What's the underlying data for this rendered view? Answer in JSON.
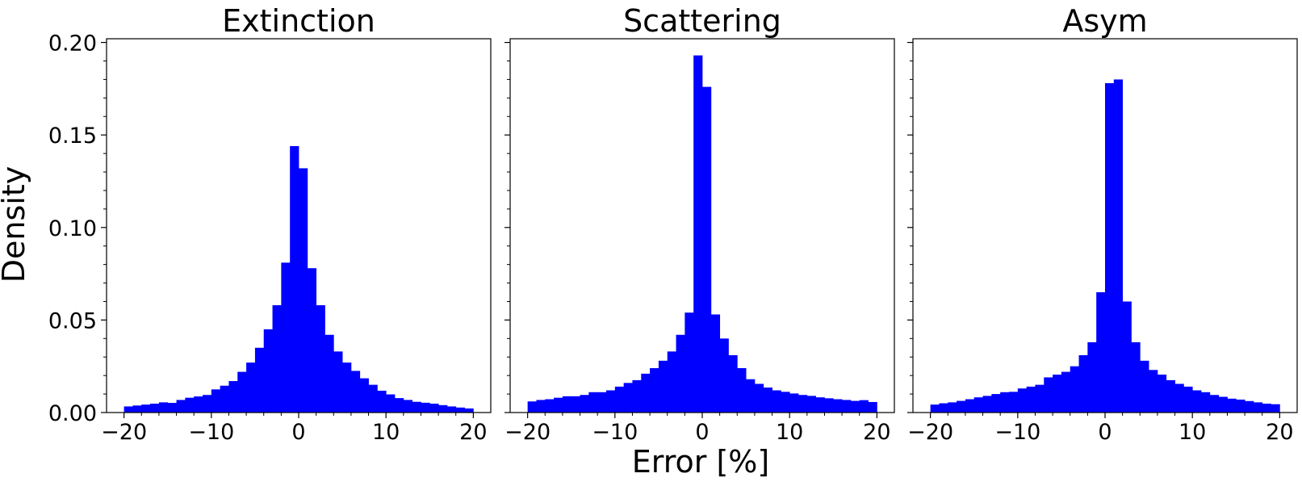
{
  "figure": {
    "ylabel": "Density",
    "xlabel": "Error [%]",
    "bar_color": "#0000ff"
  },
  "chart_data": [
    {
      "type": "bar",
      "title": "Extinction",
      "xlim": [
        -22,
        22
      ],
      "ylim": [
        0,
        0.202
      ],
      "xticks": [
        -20,
        -10,
        0,
        10,
        20
      ],
      "yticks": [
        0.0,
        0.05,
        0.1,
        0.15,
        0.2
      ],
      "xtick_labels": [
        "−20",
        "−10",
        "0",
        "10",
        "20"
      ],
      "ytick_labels": [
        "0.00",
        "0.05",
        "0.10",
        "0.15",
        "0.20"
      ],
      "bin_edges_start": -20,
      "bin_width": 1,
      "values": [
        0.0033,
        0.0038,
        0.0043,
        0.0048,
        0.0055,
        0.0052,
        0.0068,
        0.008,
        0.0087,
        0.0095,
        0.0125,
        0.0145,
        0.017,
        0.022,
        0.027,
        0.035,
        0.045,
        0.058,
        0.081,
        0.144,
        0.132,
        0.078,
        0.058,
        0.042,
        0.033,
        0.027,
        0.0225,
        0.0185,
        0.015,
        0.0118,
        0.0098,
        0.0078,
        0.0068,
        0.0058,
        0.0053,
        0.0048,
        0.004,
        0.0033,
        0.0027,
        0.0022
      ],
      "grid": false
    },
    {
      "type": "bar",
      "title": "Scattering",
      "xlim": [
        -22,
        22
      ],
      "ylim": [
        0,
        0.202
      ],
      "xticks": [
        -20,
        -10,
        0,
        10,
        20
      ],
      "xtick_labels": [
        "−20",
        "−10",
        "0",
        "10",
        "20"
      ],
      "bin_edges_start": -20,
      "bin_width": 1,
      "values": [
        0.006,
        0.0068,
        0.0072,
        0.008,
        0.0088,
        0.0088,
        0.0095,
        0.011,
        0.011,
        0.012,
        0.014,
        0.016,
        0.0175,
        0.021,
        0.024,
        0.028,
        0.033,
        0.042,
        0.054,
        0.193,
        0.176,
        0.053,
        0.04,
        0.031,
        0.024,
        0.018,
        0.0155,
        0.0135,
        0.012,
        0.0112,
        0.0103,
        0.0095,
        0.009,
        0.0082,
        0.0077,
        0.0072,
        0.0068,
        0.0063,
        0.0067,
        0.0057
      ],
      "grid": false
    },
    {
      "type": "bar",
      "title": "Asym",
      "xlim": [
        -22,
        22
      ],
      "ylim": [
        0,
        0.202
      ],
      "xticks": [
        -20,
        -10,
        0,
        10,
        20
      ],
      "xtick_labels": [
        "−20",
        "−10",
        "0",
        "10",
        "20"
      ],
      "bin_edges_start": -20,
      "bin_width": 1,
      "values": [
        0.0043,
        0.005,
        0.0055,
        0.0063,
        0.0072,
        0.0082,
        0.009,
        0.01,
        0.011,
        0.0112,
        0.013,
        0.014,
        0.015,
        0.019,
        0.0205,
        0.022,
        0.025,
        0.031,
        0.038,
        0.065,
        0.178,
        0.18,
        0.06,
        0.038,
        0.028,
        0.023,
        0.0205,
        0.0175,
        0.0155,
        0.014,
        0.012,
        0.011,
        0.0095,
        0.0085,
        0.0075,
        0.007,
        0.0062,
        0.0055,
        0.0048,
        0.0045
      ],
      "grid": false
    }
  ]
}
